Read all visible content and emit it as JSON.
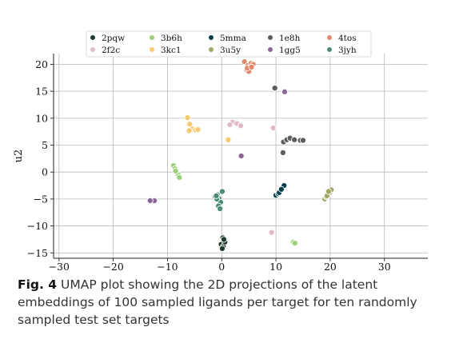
{
  "chart_data": {
    "type": "scatter",
    "xlabel": "u1",
    "ylabel": "u2",
    "xlim": [
      -31,
      38
    ],
    "ylim": [
      -16,
      22
    ],
    "xticks": [
      -30,
      -20,
      -10,
      0,
      10,
      20,
      30
    ],
    "yticks": [
      -15,
      -10,
      -5,
      0,
      5,
      10,
      15,
      20
    ],
    "grid": true,
    "legend_position": "top",
    "series": [
      {
        "name": "2pqw",
        "color": "#1f3a2a",
        "x": [
          0.2,
          0.5,
          -0.1,
          0.3,
          0.6,
          0.1,
          0.4
        ],
        "y": [
          -12.2,
          -12.8,
          -13.4,
          -13.8,
          -13.0,
          -14.2,
          -12.5
        ]
      },
      {
        "name": "2f2c",
        "color": "#e0bcc9",
        "x": [
          2.0,
          2.8,
          3.5,
          1.5,
          9.5,
          9.2,
          -13.0
        ],
        "y": [
          9.3,
          9.0,
          8.6,
          8.8,
          8.2,
          -11.2,
          -5.4
        ]
      },
      {
        "name": "3b6h",
        "color": "#9bd07a",
        "x": [
          -8.9,
          -8.6,
          -8.3,
          -8.0,
          -7.8,
          -8.5,
          13.2,
          13.5
        ],
        "y": [
          1.2,
          0.6,
          0.0,
          -0.5,
          -1.0,
          0.2,
          -13.0,
          -13.2
        ]
      },
      {
        "name": "3kc1",
        "color": "#f7c970",
        "x": [
          -6.3,
          -5.9,
          -5.4,
          -4.8,
          -4.4,
          -6.0,
          1.2
        ],
        "y": [
          10.1,
          8.9,
          8.0,
          7.8,
          7.9,
          7.7,
          6.0
        ]
      },
      {
        "name": "5mma",
        "color": "#003d4d",
        "x": [
          10.0,
          10.4,
          10.8,
          11.2,
          11.5,
          10.6,
          11.0
        ],
        "y": [
          -4.3,
          -4.0,
          -3.5,
          -3.0,
          -2.5,
          -3.8,
          -3.2
        ]
      },
      {
        "name": "3u5y",
        "color": "#a2a664",
        "x": [
          19.0,
          19.3,
          19.6,
          19.9,
          20.2,
          19.4,
          19.7
        ],
        "y": [
          -5.0,
          -4.6,
          -4.2,
          -3.8,
          -3.3,
          -4.4,
          -3.6
        ]
      },
      {
        "name": "1e8h",
        "color": "#5c5c5c",
        "x": [
          11.4,
          12.0,
          12.6,
          13.4,
          14.5,
          15.0,
          11.3,
          9.8
        ],
        "y": [
          5.6,
          6.0,
          6.3,
          6.0,
          5.9,
          5.9,
          3.6,
          15.6
        ]
      },
      {
        "name": "1gg5",
        "color": "#8a6797",
        "x": [
          3.6,
          -12.4,
          -13.2,
          11.6
        ],
        "y": [
          3.0,
          -5.3,
          -5.3,
          14.9
        ]
      },
      {
        "name": "4tos",
        "color": "#e2886a",
        "x": [
          4.2,
          4.8,
          5.4,
          5.8,
          4.6,
          5.0,
          4.7,
          5.5
        ],
        "y": [
          20.5,
          19.8,
          20.2,
          20.0,
          19.0,
          18.7,
          19.3,
          19.5
        ]
      },
      {
        "name": "3jyh",
        "color": "#4a8c73",
        "x": [
          -1.2,
          -0.8,
          -0.5,
          -0.2,
          0.1,
          -0.6,
          -0.9,
          -0.3,
          -1.0
        ],
        "y": [
          -4.6,
          -4.2,
          -4.9,
          -5.6,
          -3.6,
          -6.3,
          -5.0,
          -6.8,
          -4.4
        ]
      }
    ]
  },
  "caption": {
    "label": "Fig. 4",
    "text": "UMAP plot showing the 2D projections of the latent embeddings of 100 sampled ligands per target for ten randomly sampled test set targets"
  }
}
